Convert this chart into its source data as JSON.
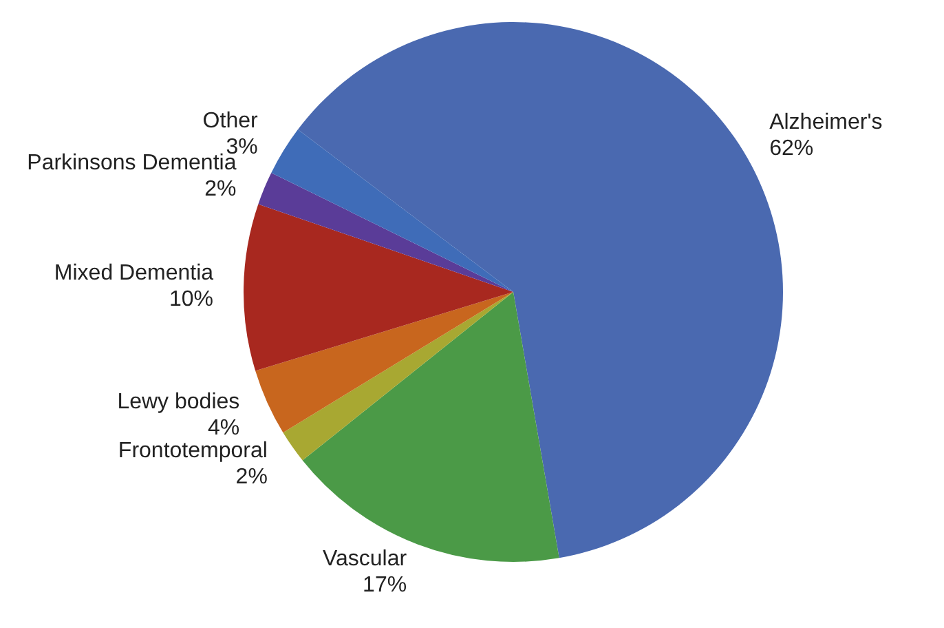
{
  "chart_data": {
    "type": "pie",
    "categories": [
      "Alzheimer's",
      "Vascular",
      "Frontotemporal",
      "Lewy bodies",
      "Mixed Dementia",
      "Parkinsons Dementia",
      "Other"
    ],
    "values": [
      62,
      17,
      2,
      4,
      10,
      2,
      3
    ],
    "value_labels": [
      "62%",
      "17%",
      "2%",
      "4%",
      "10%",
      "2%",
      "3%"
    ],
    "colors": [
      "#4a69b0",
      "#4b9a47",
      "#a8a832",
      "#c8661e",
      "#a8281f",
      "#5a3c98",
      "#3f6cb8"
    ],
    "legend": false
  }
}
